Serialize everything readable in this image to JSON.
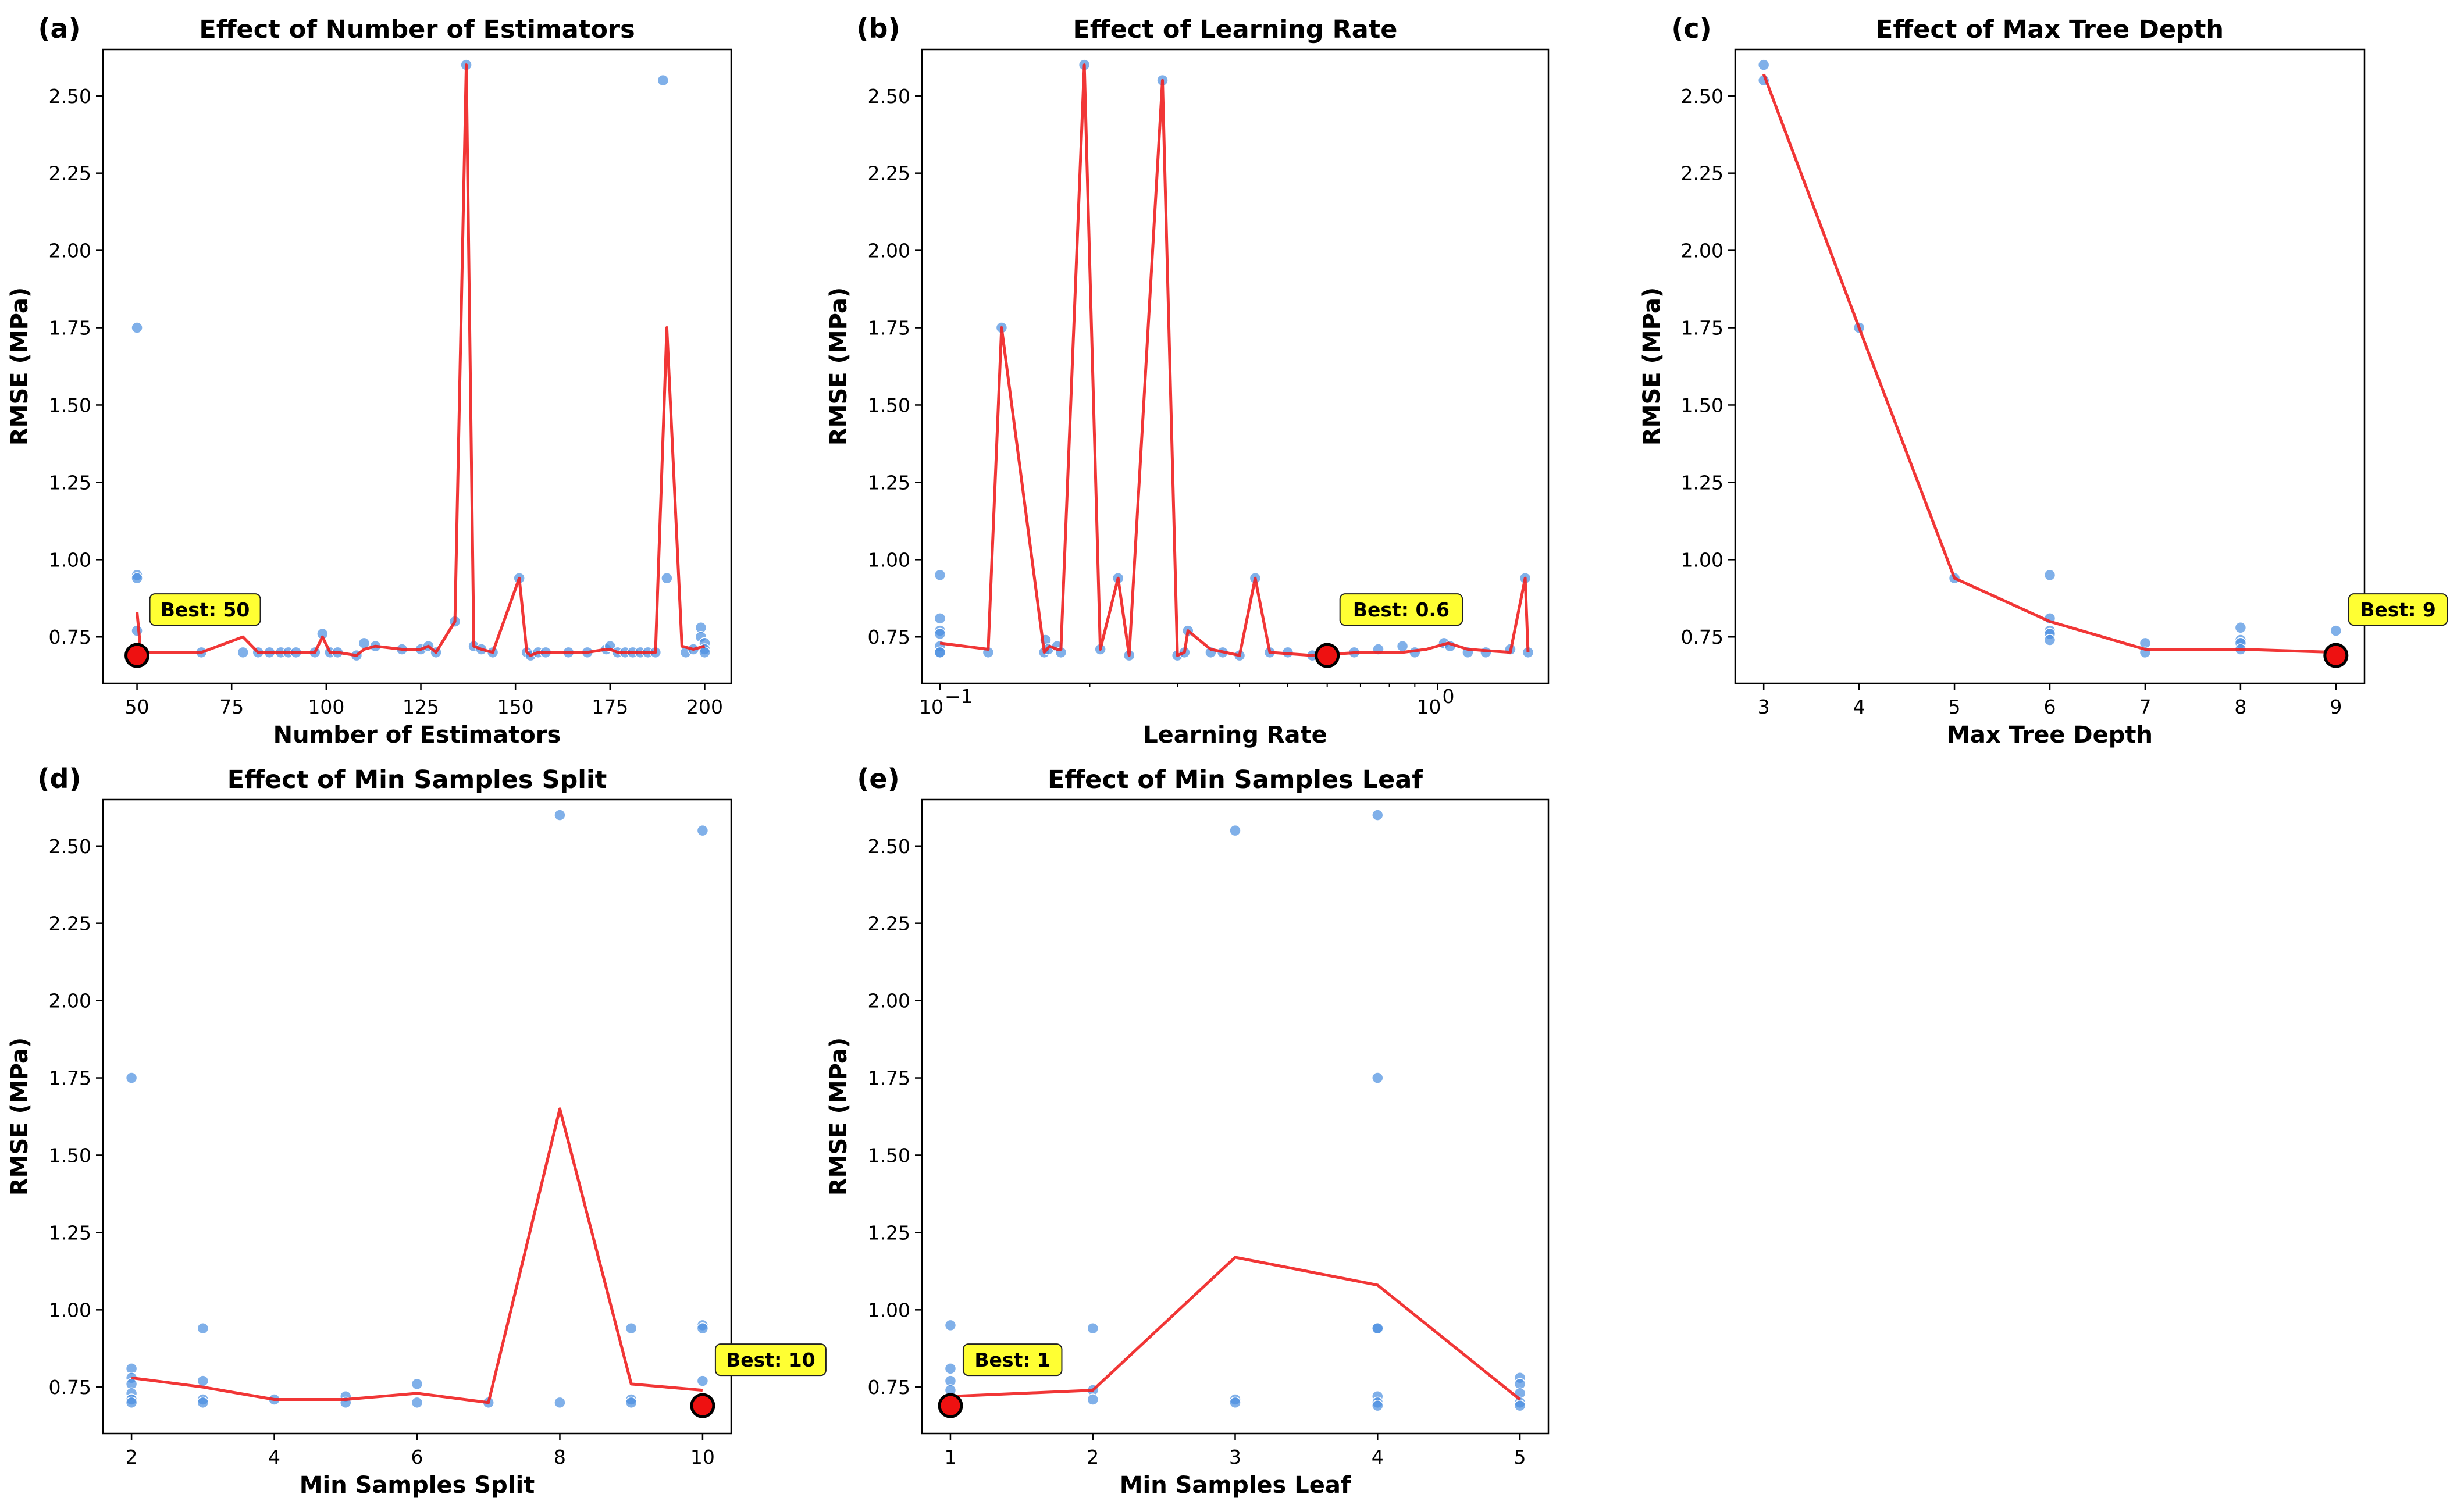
{
  "chart_data": [
    {
      "id": "a",
      "type": "scatter",
      "panel_label": "(a)",
      "title": "Effect of Number of Estimators",
      "xlabel": "Number of Estimators",
      "ylabel": "RMSE (MPa)",
      "xscale": "linear",
      "xlim": [
        41,
        207
      ],
      "ylim": [
        0.6,
        2.65
      ],
      "xticks": [
        50,
        75,
        100,
        125,
        150,
        175,
        200
      ],
      "xtick_labels": [
        "50",
        "75",
        "100",
        "125",
        "150",
        "175",
        "200"
      ],
      "yticks": [
        0.75,
        1.0,
        1.25,
        1.5,
        1.75,
        2.0,
        2.25,
        2.5
      ],
      "ytick_labels": [
        "0.75",
        "1.00",
        "1.25",
        "1.50",
        "1.75",
        "2.00",
        "2.25",
        "2.50"
      ],
      "points": {
        "x": [
          50,
          50,
          50,
          50,
          50,
          67,
          78,
          82,
          85,
          88,
          90,
          92,
          97,
          99,
          101,
          103,
          108,
          110,
          113,
          120,
          125,
          127,
          129,
          134,
          137,
          139,
          141,
          144,
          151,
          153,
          154,
          156,
          158,
          164,
          169,
          174,
          175,
          177,
          179,
          181,
          183,
          185,
          187,
          189,
          190,
          195,
          197,
          199,
          199,
          200,
          200,
          200
        ],
        "y": [
          1.75,
          0.95,
          0.94,
          0.77,
          0.7,
          0.7,
          0.7,
          0.7,
          0.7,
          0.7,
          0.7,
          0.7,
          0.7,
          0.76,
          0.7,
          0.7,
          0.69,
          0.73,
          0.72,
          0.71,
          0.71,
          0.72,
          0.7,
          0.8,
          2.6,
          0.72,
          0.71,
          0.7,
          0.94,
          0.7,
          0.69,
          0.7,
          0.7,
          0.7,
          0.7,
          0.71,
          0.72,
          0.7,
          0.7,
          0.7,
          0.7,
          0.7,
          0.7,
          2.55,
          0.94,
          0.7,
          0.71,
          0.78,
          0.75,
          0.73,
          0.71,
          0.7
        ]
      },
      "line": {
        "x": [
          50,
          51,
          67,
          78,
          82,
          85,
          88,
          90,
          92,
          97,
          99,
          101,
          103,
          108,
          110,
          113,
          120,
          125,
          127,
          129,
          134,
          137,
          139,
          141,
          144,
          151,
          153,
          154,
          156,
          158,
          164,
          169,
          174,
          175,
          177,
          179,
          181,
          183,
          185,
          187,
          190,
          194,
          197,
          200
        ],
        "y": [
          0.83,
          0.7,
          0.7,
          0.75,
          0.7,
          0.7,
          0.7,
          0.7,
          0.7,
          0.7,
          0.75,
          0.7,
          0.7,
          0.69,
          0.71,
          0.72,
          0.71,
          0.71,
          0.72,
          0.7,
          0.8,
          2.6,
          0.72,
          0.71,
          0.7,
          0.94,
          0.7,
          0.69,
          0.7,
          0.7,
          0.7,
          0.7,
          0.71,
          0.71,
          0.7,
          0.7,
          0.7,
          0.7,
          0.7,
          0.7,
          1.75,
          0.72,
          0.71,
          0.72
        ]
      },
      "best": {
        "x": 50,
        "y": 0.69,
        "label": "Best: 50"
      }
    },
    {
      "id": "b",
      "type": "scatter",
      "panel_label": "(b)",
      "title": "Effect of Learning Rate",
      "xlabel": "Learning Rate",
      "ylabel": "RMSE (MPa)",
      "xscale": "log",
      "xlim": [
        0.092,
        1.67
      ],
      "ylim": [
        0.6,
        2.65
      ],
      "xticks": [
        0.1,
        1.0
      ],
      "xtick_labels": [
        "10",
        "10"
      ],
      "xtick_exponents": [
        "−1",
        "0"
      ],
      "yticks": [
        0.75,
        1.0,
        1.25,
        1.5,
        1.75,
        2.0,
        2.25,
        2.5
      ],
      "ytick_labels": [
        "0.75",
        "1.00",
        "1.25",
        "1.50",
        "1.75",
        "2.00",
        "2.25",
        "2.50"
      ],
      "points": {
        "x": [
          0.1,
          0.1,
          0.1,
          0.1,
          0.1,
          0.1,
          0.1,
          0.125,
          0.133,
          0.162,
          0.163,
          0.165,
          0.172,
          0.175,
          0.195,
          0.21,
          0.228,
          0.24,
          0.28,
          0.3,
          0.31,
          0.315,
          0.35,
          0.37,
          0.4,
          0.43,
          0.46,
          0.5,
          0.56,
          0.62,
          0.68,
          0.76,
          0.85,
          0.9,
          1.03,
          1.06,
          1.15,
          1.25,
          1.4,
          1.5,
          1.52
        ],
        "y": [
          0.95,
          0.81,
          0.77,
          0.76,
          0.72,
          0.7,
          0.7,
          0.7,
          1.75,
          0.7,
          0.74,
          0.71,
          0.72,
          0.7,
          2.6,
          0.71,
          0.94,
          0.69,
          2.55,
          0.69,
          0.7,
          0.77,
          0.7,
          0.7,
          0.69,
          0.94,
          0.7,
          0.7,
          0.69,
          0.7,
          0.7,
          0.71,
          0.72,
          0.7,
          0.73,
          0.72,
          0.7,
          0.7,
          0.71,
          0.94,
          0.7
        ]
      },
      "line": {
        "x": [
          0.1,
          0.125,
          0.133,
          0.162,
          0.166,
          0.172,
          0.175,
          0.195,
          0.21,
          0.228,
          0.24,
          0.28,
          0.3,
          0.31,
          0.315,
          0.35,
          0.4,
          0.43,
          0.46,
          0.56,
          0.7,
          0.85,
          0.95,
          1.05,
          1.15,
          1.4,
          1.5,
          1.52
        ],
        "y": [
          0.73,
          0.71,
          1.75,
          0.7,
          0.72,
          0.71,
          0.71,
          2.6,
          0.71,
          0.94,
          0.69,
          2.55,
          0.69,
          0.7,
          0.77,
          0.71,
          0.69,
          0.94,
          0.7,
          0.69,
          0.7,
          0.7,
          0.71,
          0.73,
          0.71,
          0.7,
          0.94,
          0.7
        ]
      },
      "best": {
        "x": 0.6,
        "y": 0.69,
        "label": "Best: 0.6"
      }
    },
    {
      "id": "c",
      "type": "scatter",
      "panel_label": "(c)",
      "title": "Effect of Max Tree Depth",
      "xlabel": "Max Tree Depth",
      "ylabel": "RMSE (MPa)",
      "xscale": "linear",
      "xlim": [
        2.7,
        9.3
      ],
      "ylim": [
        0.6,
        2.65
      ],
      "xticks": [
        3,
        4,
        5,
        6,
        7,
        8,
        9
      ],
      "xtick_labels": [
        "3",
        "4",
        "5",
        "6",
        "7",
        "8",
        "9"
      ],
      "yticks": [
        0.75,
        1.0,
        1.25,
        1.5,
        1.75,
        2.0,
        2.25,
        2.5
      ],
      "ytick_labels": [
        "0.75",
        "1.00",
        "1.25",
        "1.50",
        "1.75",
        "2.00",
        "2.25",
        "2.50"
      ],
      "points": {
        "x": [
          3,
          3,
          4,
          5,
          6,
          6,
          6,
          6,
          6,
          7,
          7,
          8,
          8,
          8,
          8,
          9
        ],
        "y": [
          2.6,
          2.55,
          1.75,
          0.94,
          0.95,
          0.81,
          0.77,
          0.76,
          0.74,
          0.73,
          0.7,
          0.78,
          0.74,
          0.73,
          0.71,
          0.77
        ]
      },
      "line": {
        "x": [
          3,
          4,
          5,
          6,
          7,
          8,
          9
        ],
        "y": [
          2.57,
          1.75,
          0.94,
          0.8,
          0.71,
          0.71,
          0.7
        ]
      },
      "best": {
        "x": 9,
        "y": 0.69,
        "label": "Best: 9"
      }
    },
    {
      "id": "d",
      "type": "scatter",
      "panel_label": "(d)",
      "title": "Effect of Min Samples Split",
      "xlabel": "Min Samples Split",
      "ylabel": "RMSE (MPa)",
      "xscale": "linear",
      "xlim": [
        1.6,
        10.4
      ],
      "ylim": [
        0.6,
        2.65
      ],
      "xticks": [
        2,
        4,
        6,
        8,
        10
      ],
      "xtick_labels": [
        "2",
        "4",
        "6",
        "8",
        "10"
      ],
      "yticks": [
        0.75,
        1.0,
        1.25,
        1.5,
        1.75,
        2.0,
        2.25,
        2.5
      ],
      "ytick_labels": [
        "0.75",
        "1.00",
        "1.25",
        "1.50",
        "1.75",
        "2.00",
        "2.25",
        "2.50"
      ],
      "points": {
        "x": [
          2,
          2,
          2,
          2,
          2,
          2,
          2,
          3,
          3,
          3,
          3,
          4,
          5,
          5,
          6,
          6,
          7,
          8,
          8,
          9,
          9,
          9,
          10,
          10,
          10,
          10
        ],
        "y": [
          1.75,
          0.81,
          0.78,
          0.76,
          0.73,
          0.71,
          0.7,
          0.94,
          0.77,
          0.71,
          0.7,
          0.71,
          0.72,
          0.7,
          0.76,
          0.7,
          0.7,
          2.6,
          0.7,
          0.94,
          0.71,
          0.7,
          2.55,
          0.95,
          0.94,
          0.77
        ]
      },
      "line": {
        "x": [
          2,
          3,
          4,
          5,
          6,
          7,
          8,
          9,
          10
        ],
        "y": [
          0.78,
          0.75,
          0.71,
          0.71,
          0.73,
          0.7,
          1.65,
          0.76,
          0.74
        ]
      },
      "best": {
        "x": 10,
        "y": 0.69,
        "label": "Best: 10"
      }
    },
    {
      "id": "e",
      "type": "scatter",
      "panel_label": "(e)",
      "title": "Effect of Min Samples Leaf",
      "xlabel": "Min Samples Leaf",
      "ylabel": "RMSE (MPa)",
      "xscale": "linear",
      "xlim": [
        0.8,
        5.2
      ],
      "ylim": [
        0.6,
        2.65
      ],
      "xticks": [
        1,
        2,
        3,
        4,
        5
      ],
      "xtick_labels": [
        "1",
        "2",
        "3",
        "4",
        "5"
      ],
      "yticks": [
        0.75,
        1.0,
        1.25,
        1.5,
        1.75,
        2.0,
        2.25,
        2.5
      ],
      "ytick_labels": [
        "0.75",
        "1.00",
        "1.25",
        "1.50",
        "1.75",
        "2.00",
        "2.25",
        "2.50"
      ],
      "points": {
        "x": [
          1,
          1,
          1,
          1,
          1,
          2,
          2,
          2,
          3,
          3,
          3,
          4,
          4,
          4,
          4,
          4,
          4,
          4,
          5,
          5,
          5,
          5,
          5
        ],
        "y": [
          0.95,
          0.81,
          0.77,
          0.74,
          0.71,
          0.94,
          0.74,
          0.71,
          2.55,
          0.71,
          0.7,
          2.6,
          1.75,
          0.94,
          0.94,
          0.72,
          0.7,
          0.69,
          0.78,
          0.76,
          0.73,
          0.7,
          0.69
        ]
      },
      "line": {
        "x": [
          1,
          2,
          3,
          4,
          5
        ],
        "y": [
          0.72,
          0.74,
          1.17,
          1.08,
          0.71
        ]
      },
      "best": {
        "x": 1,
        "y": 0.69,
        "label": "Best: 1"
      }
    }
  ],
  "colors": {
    "points": "#4a8ee0",
    "line": "#f02020",
    "best_marker": "#ee1111",
    "best_label_bg": "#ffff33"
  }
}
